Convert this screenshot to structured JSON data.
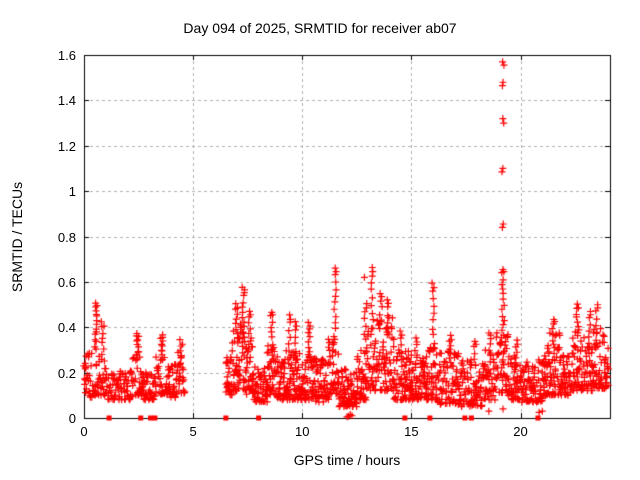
{
  "page": {
    "background": "#ffffff"
  },
  "chart_data": {
    "type": "scatter",
    "title": "Day 094 of 2025, SRMTID for receiver ab07",
    "xlabel": "GPS time / hours",
    "ylabel": "SRMTID / TECUs",
    "xlim": [
      0,
      24.1
    ],
    "ylim": [
      0,
      1.6
    ],
    "xtick_values": [
      0,
      5,
      10,
      15,
      20
    ],
    "xtick_labels": [
      "0",
      "5",
      "10",
      "15",
      "20"
    ],
    "ytick_values": [
      0,
      0.2,
      0.4,
      0.6,
      0.8,
      1.0,
      1.2,
      1.4,
      1.6
    ],
    "ytick_labels": [
      "0",
      "0.2",
      "0.4",
      "0.6",
      "0.8",
      "1",
      "1.2",
      "1.4",
      "1.6"
    ],
    "grid": true,
    "grid_color": "#b0b0b0",
    "axis_color": "#000000",
    "marker": "plus",
    "marker_color": "#ff0000",
    "marker_size_px": 7,
    "legend": null,
    "seed": 20250941,
    "data_gap_hours": [
      4.62,
      6.5
    ],
    "band_segments": [
      [
        0.0,
        0.45,
        0.09,
        0.3
      ],
      [
        0.45,
        0.75,
        0.1,
        0.28
      ],
      [
        0.75,
        1.0,
        0.1,
        0.3
      ],
      [
        1.0,
        1.6,
        0.08,
        0.2
      ],
      [
        1.6,
        2.2,
        0.08,
        0.21
      ],
      [
        2.2,
        2.65,
        0.1,
        0.3
      ],
      [
        2.65,
        3.3,
        0.08,
        0.2
      ],
      [
        3.3,
        3.8,
        0.1,
        0.28
      ],
      [
        3.8,
        4.25,
        0.09,
        0.24
      ],
      [
        4.25,
        4.62,
        0.11,
        0.3
      ],
      [
        6.5,
        6.8,
        0.1,
        0.3
      ],
      [
        6.8,
        7.15,
        0.12,
        0.4
      ],
      [
        7.15,
        7.45,
        0.12,
        0.42
      ],
      [
        7.45,
        7.8,
        0.1,
        0.35
      ],
      [
        7.8,
        8.4,
        0.07,
        0.24
      ],
      [
        8.4,
        8.8,
        0.1,
        0.32
      ],
      [
        8.8,
        9.2,
        0.08,
        0.28
      ],
      [
        9.2,
        9.8,
        0.08,
        0.3
      ],
      [
        9.8,
        10.6,
        0.08,
        0.3
      ],
      [
        10.6,
        11.2,
        0.07,
        0.26
      ],
      [
        11.2,
        11.7,
        0.1,
        0.35
      ],
      [
        11.7,
        12.5,
        0.05,
        0.22
      ],
      [
        12.5,
        13.0,
        0.08,
        0.3
      ],
      [
        13.0,
        13.35,
        0.12,
        0.42
      ],
      [
        13.35,
        14.2,
        0.12,
        0.45
      ],
      [
        14.2,
        14.9,
        0.08,
        0.3
      ],
      [
        14.9,
        15.7,
        0.08,
        0.28
      ],
      [
        15.7,
        16.2,
        0.08,
        0.32
      ],
      [
        16.2,
        17.2,
        0.06,
        0.3
      ],
      [
        17.2,
        18.3,
        0.05,
        0.26
      ],
      [
        18.3,
        18.9,
        0.08,
        0.3
      ],
      [
        18.9,
        19.45,
        0.1,
        0.38
      ],
      [
        19.45,
        20.0,
        0.08,
        0.28
      ],
      [
        20.0,
        21.1,
        0.07,
        0.26
      ],
      [
        21.1,
        21.8,
        0.1,
        0.38
      ],
      [
        21.8,
        22.4,
        0.1,
        0.32
      ],
      [
        22.4,
        22.8,
        0.12,
        0.4
      ],
      [
        22.8,
        23.3,
        0.12,
        0.38
      ],
      [
        23.3,
        24.05,
        0.13,
        0.4
      ]
    ],
    "spike_columns": [
      [
        0.55,
        0.3,
        0.51,
        14
      ],
      [
        0.85,
        0.26,
        0.42,
        8
      ],
      [
        2.45,
        0.26,
        0.375,
        10
      ],
      [
        3.55,
        0.25,
        0.37,
        10
      ],
      [
        4.45,
        0.24,
        0.34,
        6
      ],
      [
        7.0,
        0.33,
        0.5,
        9
      ],
      [
        7.3,
        0.38,
        0.58,
        10
      ],
      [
        7.6,
        0.3,
        0.47,
        8
      ],
      [
        8.6,
        0.28,
        0.47,
        9
      ],
      [
        9.4,
        0.26,
        0.45,
        7
      ],
      [
        9.7,
        0.26,
        0.42,
        6
      ],
      [
        10.3,
        0.27,
        0.42,
        8
      ],
      [
        11.5,
        0.33,
        0.66,
        12
      ],
      [
        12.9,
        0.28,
        0.5,
        8
      ],
      [
        13.2,
        0.4,
        0.66,
        9
      ],
      [
        13.6,
        0.4,
        0.55,
        6
      ],
      [
        13.9,
        0.38,
        0.52,
        5
      ],
      [
        14.5,
        0.26,
        0.38,
        5
      ],
      [
        15.2,
        0.24,
        0.35,
        5
      ],
      [
        16.0,
        0.3,
        0.59,
        10
      ],
      [
        16.8,
        0.27,
        0.36,
        6
      ],
      [
        17.9,
        0.23,
        0.34,
        5
      ],
      [
        18.6,
        0.27,
        0.38,
        5
      ],
      [
        19.2,
        0.36,
        0.66,
        14
      ],
      [
        19.8,
        0.24,
        0.34,
        5
      ],
      [
        21.5,
        0.32,
        0.44,
        6
      ],
      [
        22.6,
        0.36,
        0.5,
        8
      ],
      [
        23.15,
        0.33,
        0.47,
        6
      ],
      [
        23.5,
        0.34,
        0.5,
        6
      ]
    ],
    "outlier_points": [
      [
        19.18,
        1.57
      ],
      [
        19.24,
        1.555
      ],
      [
        19.2,
        1.48
      ],
      [
        19.17,
        1.465
      ],
      [
        19.19,
        1.32
      ],
      [
        19.23,
        1.3
      ],
      [
        19.19,
        1.1
      ],
      [
        19.15,
        1.085
      ],
      [
        19.21,
        0.855
      ],
      [
        19.17,
        0.84
      ],
      [
        12.85,
        0.62
      ]
    ],
    "low_points": [
      [
        12.05,
        0.005
      ],
      [
        12.12,
        0.008
      ],
      [
        12.2,
        0.015
      ],
      [
        12.28,
        0.01
      ],
      [
        18.55,
        0.03
      ],
      [
        19.2,
        0.04
      ],
      [
        20.85,
        0.025
      ],
      [
        21.0,
        0.03
      ]
    ],
    "zero_marker_hours": [
      1.15,
      2.6,
      3.05,
      3.25,
      6.5,
      8.0,
      14.7,
      15.85,
      17.45,
      17.75,
      20.8
    ]
  }
}
